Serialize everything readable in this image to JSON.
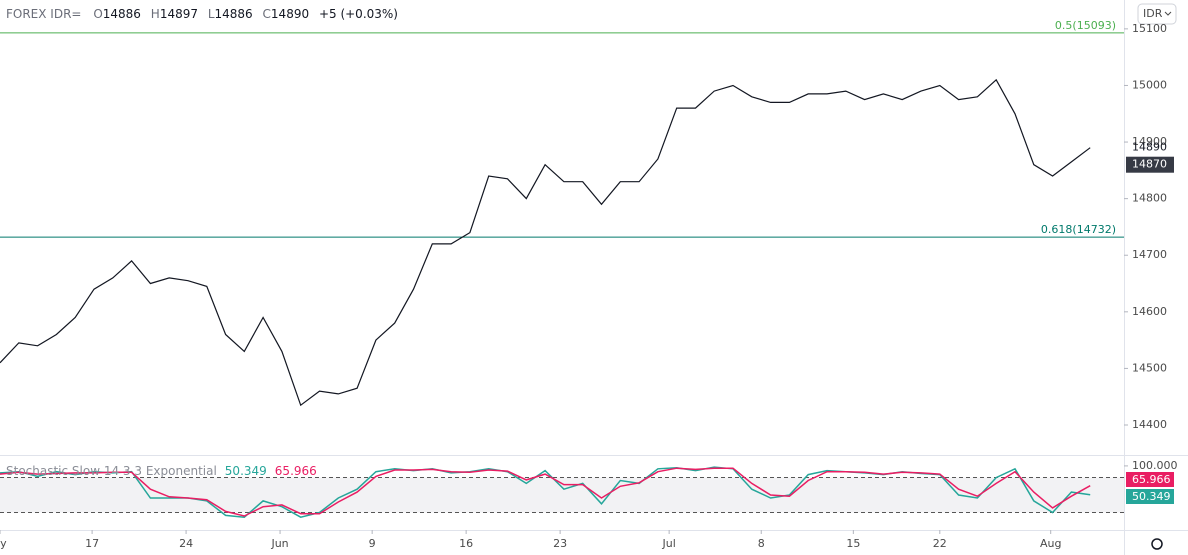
{
  "chart_data": [
    {
      "type": "line",
      "title": "FOREX IDR=",
      "ohlc_labels": [
        "O",
        "H",
        "L",
        "C"
      ],
      "ohlc": [
        14886,
        14897,
        14886,
        14890
      ],
      "change": "+5 (+0.03%)",
      "x": [
        0,
        1,
        2,
        3,
        4,
        5,
        6,
        7,
        8,
        9,
        10,
        11,
        12,
        13,
        14,
        15,
        16,
        17,
        18,
        19,
        20,
        21,
        22,
        23,
        24,
        25,
        26,
        27,
        28,
        29,
        30,
        31,
        32,
        33,
        34,
        35,
        36,
        37,
        38,
        39,
        40,
        41,
        42,
        43,
        44,
        45,
        46,
        47,
        48,
        49,
        50,
        51,
        52,
        53,
        54,
        55,
        56,
        57,
        58
      ],
      "series": [
        {
          "color": "#131722",
          "values": [
            14510,
            14545,
            14540,
            14560,
            14590,
            14640,
            14660,
            14690,
            14650,
            14660,
            14655,
            14645,
            14560,
            14530,
            14590,
            14530,
            14435,
            14460,
            14455,
            14465,
            14550,
            14580,
            14640,
            14720,
            14720,
            14740,
            14840,
            14835,
            14800,
            14860,
            14830,
            14830,
            14790,
            14830,
            14830,
            14870,
            14960,
            14960,
            14990,
            15000,
            14980,
            14970,
            14970,
            14985,
            14985,
            14990,
            14975,
            14985,
            14975,
            14990,
            15000,
            14975,
            14980,
            15010,
            14950,
            14860,
            14840,
            14865,
            14890
          ]
        }
      ],
      "xlim": [
        0,
        59.8
      ],
      "xticks": [
        {
          "value": 0,
          "label": "ay"
        },
        {
          "value": 4.9,
          "label": "17"
        },
        {
          "value": 9.9,
          "label": "24"
        },
        {
          "value": 14.9,
          "label": "Jun"
        },
        {
          "value": 19.8,
          "label": "9"
        },
        {
          "value": 24.8,
          "label": "16"
        },
        {
          "value": 29.8,
          "label": "23"
        },
        {
          "value": 35.6,
          "label": "Jul"
        },
        {
          "value": 40.5,
          "label": "8"
        },
        {
          "value": 45.4,
          "label": "15"
        },
        {
          "value": 50,
          "label": "22"
        },
        {
          "value": 55.9,
          "label": "Aug"
        }
      ],
      "ylim": [
        14347,
        15151
      ],
      "yticks": [
        14400,
        14500,
        14600,
        14700,
        14800,
        14900,
        15000,
        15100
      ],
      "price_labels": [
        14890,
        14870
      ],
      "annotations": [
        {
          "value": 15093,
          "label": "0.5(15093)",
          "color": "#4caf50"
        },
        {
          "value": 14732,
          "label": "0.618(14732)",
          "color": "#00796b"
        }
      ],
      "currency_button": "IDR"
    },
    {
      "type": "line",
      "title": "Stochastic Slow 14 3 3 Exponential",
      "x": [
        0,
        1,
        2,
        3,
        4,
        5,
        6,
        7,
        8,
        9,
        10,
        11,
        12,
        13,
        14,
        15,
        16,
        17,
        18,
        19,
        20,
        21,
        22,
        23,
        24,
        25,
        26,
        27,
        28,
        29,
        30,
        31,
        32,
        33,
        34,
        35,
        36,
        37,
        38,
        39,
        40,
        41,
        42,
        43,
        44,
        45,
        46,
        47,
        48,
        49,
        50,
        51,
        52,
        53,
        54,
        55,
        56,
        57,
        58
      ],
      "series": [
        {
          "color": "#26a69a",
          "values": [
            88,
            90,
            82,
            90,
            85,
            90,
            88,
            90,
            45,
            45,
            45,
            40,
            15,
            12,
            40,
            30,
            12,
            20,
            45,
            60,
            90,
            95,
            92,
            95,
            88,
            90,
            95,
            90,
            70,
            92,
            60,
            70,
            35,
            75,
            70,
            95,
            97,
            92,
            98,
            95,
            60,
            45,
            50,
            85,
            92,
            90,
            88,
            85,
            90,
            87,
            85,
            50,
            45,
            80,
            95,
            40,
            20,
            55,
            50.349
          ]
        },
        {
          "color": "#e91e63",
          "values": [
            86,
            89,
            86,
            87,
            88,
            88,
            89,
            89,
            60,
            47,
            45,
            42,
            22,
            14,
            30,
            33,
            18,
            18,
            38,
            55,
            82,
            93,
            93,
            94,
            90,
            89,
            93,
            91,
            76,
            86,
            68,
            68,
            45,
            65,
            71,
            90,
            96,
            94,
            96,
            96,
            70,
            50,
            48,
            75,
            90,
            90,
            89,
            86,
            89,
            88,
            86,
            60,
            48,
            70,
            90,
            55,
            28,
            48,
            65.966
          ]
        }
      ],
      "xlim": [
        0,
        59.8
      ],
      "ylim": [
        -10,
        117
      ],
      "yticks": [
        {
          "value": 100,
          "label": "100.000"
        }
      ],
      "levels": [
        80,
        20
      ]
    }
  ]
}
